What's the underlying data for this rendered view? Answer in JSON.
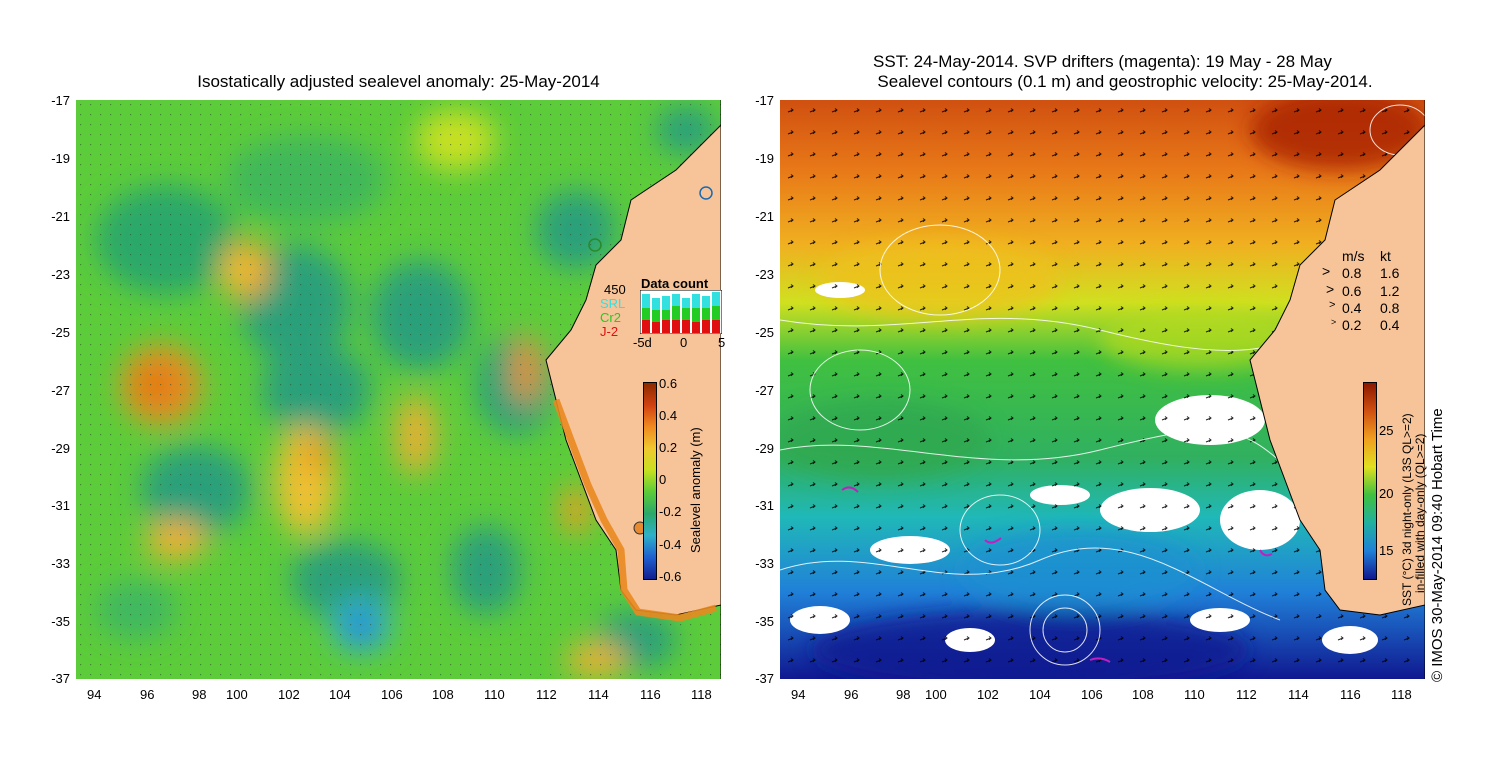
{
  "left": {
    "title": "Isostatically adjusted sealevel anomaly: 25-May-2014",
    "lat_ticks": [
      "-17",
      "-19",
      "-21",
      "-23",
      "-25",
      "-27",
      "-29",
      "-31",
      "-33",
      "-35",
      "-37"
    ],
    "lon_ticks": [
      "94",
      "96",
      "98",
      "100",
      "102",
      "104",
      "106",
      "108",
      "110",
      "112",
      "114",
      "116",
      "118"
    ],
    "data_count": {
      "title": "Data count",
      "max": "450",
      "series": [
        {
          "name": "SRL",
          "color": "#33e0e0"
        },
        {
          "name": "Cr2",
          "color": "#22cc22"
        },
        {
          "name": "J-2",
          "color": "#e01010"
        }
      ],
      "x_ticks": [
        "-5d",
        "0",
        "5"
      ]
    },
    "colorbar": {
      "label": "Sealevel anomaly (m)",
      "ticks": [
        "0.6",
        "0.4",
        "0.2",
        "0",
        "-0.2",
        "-0.4",
        "-0.6"
      ]
    }
  },
  "right": {
    "title_line1": "SST: 24-May-2014. SVP drifters (magenta): 19 May - 28 May",
    "title_line2": "Sealevel contours (0.1 m) and geostrophic velocity: 25-May-2014.",
    "lat_ticks": [
      "-17",
      "-19",
      "-21",
      "-23",
      "-25",
      "-27",
      "-29",
      "-31",
      "-33",
      "-35",
      "-37"
    ],
    "lon_ticks": [
      "94",
      "96",
      "98",
      "100",
      "102",
      "104",
      "106",
      "108",
      "110",
      "112",
      "114",
      "116",
      "118"
    ],
    "velocity_legend": {
      "header_ms": "m/s",
      "header_kt": "kt",
      "rows": [
        {
          "ms": "0.8",
          "kt": "1.6"
        },
        {
          "ms": "0.6",
          "kt": "1.2"
        },
        {
          "ms": "0.4",
          "kt": "0.8"
        },
        {
          "ms": "0.2",
          "kt": "0.4"
        }
      ]
    },
    "colorbar": {
      "label_line1": "SST (°C) 3d night-only (L3S QL>=2)",
      "label_line2": "in-filled with day-only (QL>=2)",
      "ticks": [
        "25",
        "20",
        "15"
      ]
    }
  },
  "credit": "© IMOS 30-May-2014 09:40 Hobart Time"
}
